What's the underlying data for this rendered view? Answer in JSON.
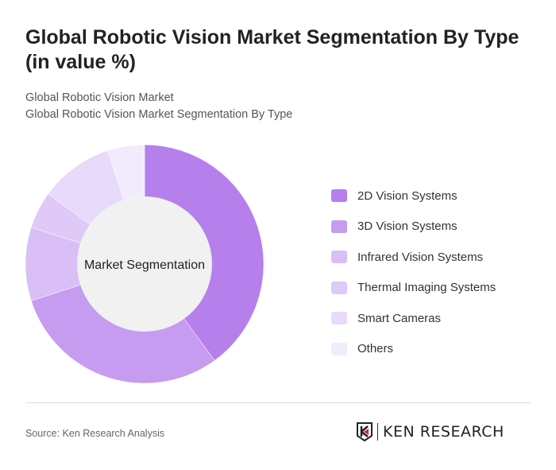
{
  "title": "Global Robotic Vision Market Segmentation By Type (in value %)",
  "subtitle_1": "Global Robotic Vision Market",
  "subtitle_2": "Global Robotic Vision Market Segmentation By Type",
  "source": "Source: Ken Research Analysis",
  "logo_text": "KEN RESEARCH",
  "chart_data": {
    "type": "pie",
    "donut": true,
    "center_label": "Market Segmentation",
    "legend_position": "right",
    "categories": [
      "2D Vision Systems",
      "3D Vision Systems",
      "Infrared Vision Systems",
      "Thermal Imaging Systems",
      "Smart Cameras",
      "Others"
    ],
    "values": [
      40,
      30,
      10,
      5,
      10,
      5
    ],
    "colors": [
      "#b57fec",
      "#c59cf0",
      "#d9bff6",
      "#dfc9f6",
      "#e8dafa",
      "#f1ebfc"
    ]
  }
}
